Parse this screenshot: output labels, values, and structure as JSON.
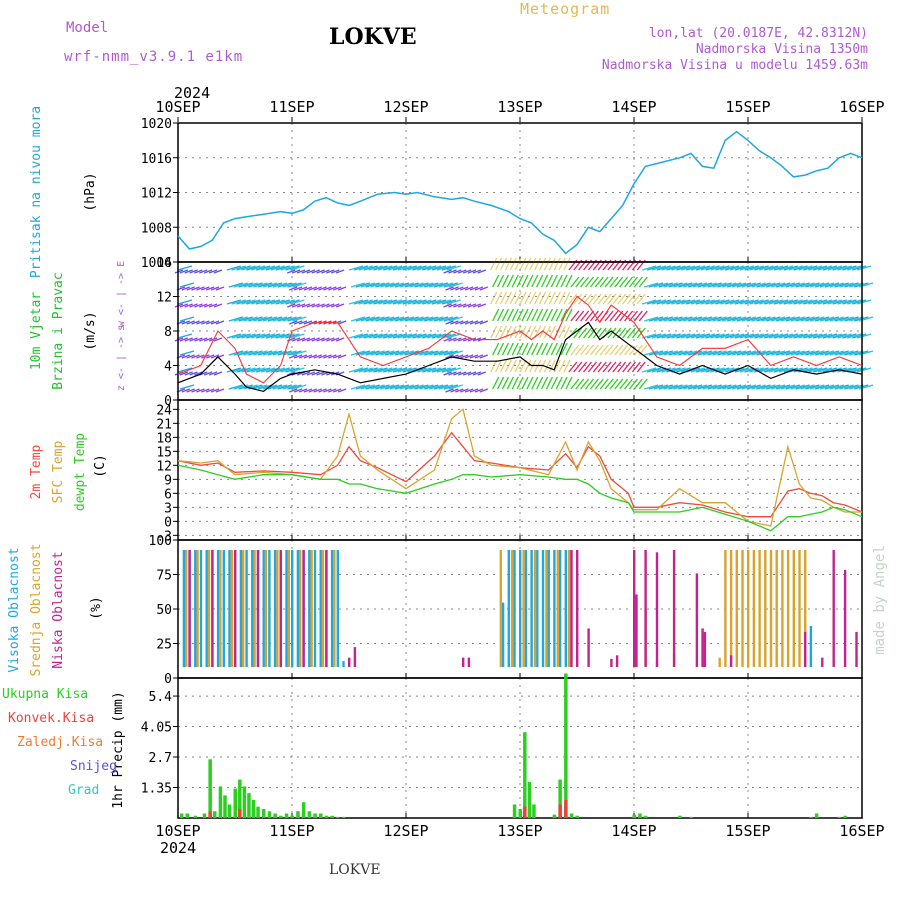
{
  "header": {
    "model_label": "Model",
    "model_name": "wrf-nmm_v3.9.1 e1km",
    "title": "LOKVE",
    "meteogram_label": "Meteogram",
    "lonlat": "lon,lat (20.0187E, 42.8312N)",
    "elevation": "Nadmorska Visina 1350m",
    "model_elevation": "Nadmorska Visina u modelu 1459.63m",
    "year": "2024",
    "footer": "LOKVE",
    "credit": "made by Angel"
  },
  "colors": {
    "pressure": "#1ea7e1",
    "wind_label": "#22c22e",
    "wind_speed": "#000000",
    "gust": "#ff3030",
    "t2m": "#ef4a3c",
    "sfc": "#d9a32e",
    "dewpt": "#2ccf20",
    "high_cloud": "#1ea7e1",
    "mid_cloud": "#d9a32e",
    "low_cloud": "#c2238c",
    "rain": "#2ccf20",
    "convective": "#e8453a",
    "snow": "#5a50e0",
    "graupel": "#2ec8c8",
    "freezing": "#f07a30"
  },
  "chart_data": [
    {
      "type": "line",
      "panel": "pressure",
      "ylabel": "Pritisak na nivou mora",
      "unit": "(hPa)",
      "x_ticks": [
        "10SEP",
        "11SEP",
        "12SEP",
        "13SEP",
        "14SEP",
        "15SEP",
        "16SEP"
      ],
      "ylim": [
        1004,
        1020
      ],
      "y_ticks": [
        "1004",
        "1008",
        "1012",
        "1016",
        "1020"
      ],
      "x": [
        0,
        0.1,
        0.2,
        0.3,
        0.4,
        0.5,
        0.6,
        0.75,
        0.9,
        1.0,
        1.1,
        1.2,
        1.3,
        1.4,
        1.5,
        1.6,
        1.75,
        1.9,
        2.0,
        2.1,
        2.25,
        2.4,
        2.5,
        2.6,
        2.75,
        2.9,
        3.0,
        3.1,
        3.2,
        3.3,
        3.4,
        3.5,
        3.6,
        3.7,
        3.8,
        3.9,
        4.0,
        4.1,
        4.25,
        4.4,
        4.5,
        4.6,
        4.7,
        4.8,
        4.9,
        5.0,
        5.1,
        5.2,
        5.3,
        5.4,
        5.5,
        5.6,
        5.7,
        5.8,
        5.9,
        6.0
      ],
      "values": [
        1007,
        1005.5,
        1005.8,
        1006.5,
        1008.5,
        1009,
        1009.2,
        1009.5,
        1009.8,
        1009.6,
        1010,
        1011,
        1011.4,
        1010.8,
        1010.5,
        1011,
        1011.8,
        1012,
        1011.8,
        1012,
        1011.5,
        1011.2,
        1011.4,
        1011,
        1010.5,
        1009.8,
        1009,
        1008.5,
        1007.2,
        1006.5,
        1005,
        1006,
        1008,
        1007.5,
        1009,
        1010.5,
        1013,
        1015,
        1015.5,
        1016,
        1016.5,
        1015,
        1014.8,
        1018,
        1019,
        1018,
        1016.8,
        1016,
        1015,
        1013.8,
        1014,
        1014.5,
        1014.8,
        1016,
        1016.5,
        1016
      ]
    },
    {
      "type": "line",
      "panel": "wind",
      "ylabel": "10m Vjetar",
      "ylabel2": "Brzina i Pravac",
      "unit": "(m/s)",
      "compass": "w <- | -> E",
      "compass_ns": "z <- | -> s",
      "x_ticks": [
        "10SEP",
        "11SEP",
        "12SEP",
        "13SEP",
        "14SEP",
        "15SEP",
        "16SEP"
      ],
      "ylim": [
        0,
        16
      ],
      "y_ticks": [
        "0",
        "4",
        "8",
        "12",
        "16"
      ],
      "x": [
        0,
        0.2,
        0.35,
        0.5,
        0.6,
        0.75,
        0.9,
        1.0,
        1.2,
        1.4,
        1.6,
        1.8,
        2.0,
        2.2,
        2.4,
        2.6,
        2.8,
        3.0,
        3.1,
        3.2,
        3.3,
        3.4,
        3.5,
        3.6,
        3.7,
        3.8,
        4.0,
        4.2,
        4.4,
        4.6,
        4.8,
        5.0,
        5.2,
        5.4,
        5.6,
        5.8,
        6.0
      ],
      "series": [
        {
          "name": "speed",
          "values": [
            2,
            3,
            5,
            3,
            1.5,
            1,
            2.5,
            3,
            3.5,
            3,
            2,
            2.5,
            3,
            4,
            5,
            4.5,
            4.5,
            5,
            4,
            4,
            3.5,
            7,
            8,
            9,
            7,
            8,
            6,
            4,
            3,
            4,
            3,
            4,
            2.5,
            3.5,
            3,
            3.5,
            3
          ]
        },
        {
          "name": "gust",
          "values": [
            3,
            4,
            8,
            6,
            3,
            2,
            4,
            8,
            9,
            9,
            5,
            4,
            5,
            6,
            8,
            7,
            7,
            8,
            7,
            8,
            7,
            10,
            12,
            11,
            9,
            11,
            9,
            5,
            4,
            6,
            6,
            7,
            4,
            5,
            4,
            5,
            4
          ]
        }
      ]
    },
    {
      "type": "line",
      "panel": "temperature",
      "ylabel": "2m Temp",
      "ylabel2": "SFC Temp",
      "ylabel3": "dewpt Temp",
      "unit": "(C)",
      "x_ticks": [
        "10SEP",
        "11SEP",
        "12SEP",
        "13SEP",
        "14SEP",
        "15SEP",
        "16SEP"
      ],
      "ylim": [
        -4,
        26
      ],
      "y_ticks": [
        "-3",
        "0",
        "3",
        "6",
        "9",
        "12",
        "15",
        "18",
        "21",
        "24"
      ],
      "x": [
        0,
        0.2,
        0.35,
        0.5,
        0.75,
        1.0,
        1.25,
        1.4,
        1.5,
        1.6,
        1.75,
        2.0,
        2.25,
        2.4,
        2.5,
        2.6,
        2.75,
        3.0,
        3.25,
        3.4,
        3.5,
        3.6,
        3.7,
        3.8,
        3.95,
        4.0,
        4.2,
        4.4,
        4.6,
        4.8,
        5.0,
        5.2,
        5.35,
        5.45,
        5.55,
        5.65,
        5.75,
        5.85,
        6.0
      ],
      "series": [
        {
          "name": "2m Temp",
          "values": [
            13,
            12,
            12.5,
            10.5,
            10.8,
            10.5,
            10,
            12,
            16,
            13,
            11.5,
            8.5,
            14,
            19,
            16,
            13,
            12.5,
            11.5,
            11,
            14.5,
            11.5,
            16,
            14,
            9,
            6,
            3,
            3,
            4,
            3.5,
            2,
            1,
            1,
            6.5,
            7,
            6,
            5.5,
            4,
            3.5,
            2
          ]
        },
        {
          "name": "SFC Temp",
          "values": [
            13,
            12.5,
            13,
            10,
            10.5,
            10,
            9,
            14,
            23,
            14,
            11,
            7,
            11,
            22,
            24,
            14,
            12,
            11.5,
            10,
            17,
            11,
            17,
            13,
            7,
            4,
            2.5,
            2.5,
            7,
            4,
            4,
            0,
            -1,
            16,
            8,
            5,
            4.5,
            3,
            2,
            2
          ]
        },
        {
          "name": "dewpt Temp",
          "values": [
            12,
            11,
            10,
            9,
            10,
            10,
            9,
            9,
            8,
            8,
            7,
            6,
            8,
            9,
            10,
            10,
            9.5,
            10,
            9.5,
            9,
            9,
            8,
            6,
            5,
            4,
            2,
            2,
            2,
            3,
            1.5,
            0,
            -2,
            1,
            1,
            1.5,
            2,
            3,
            2.5,
            1
          ]
        }
      ]
    },
    {
      "type": "bar",
      "panel": "cloud",
      "ylabel": "Visoka Oblacnost",
      "ylabel2": "Srednja Oblacnost",
      "ylabel3": "Niska Oblacnost",
      "unit": "(%)",
      "x_ticks": [
        "10SEP",
        "11SEP",
        "12SEP",
        "13SEP",
        "14SEP",
        "15SEP",
        "16SEP"
      ],
      "ylim": [
        0,
        100
      ],
      "y_ticks": [
        "0",
        "25",
        "50",
        "75",
        "100"
      ],
      "series": [
        {
          "name": "Visoka Oblacnost",
          "x": [
            0.05,
            0.1,
            0.15,
            0.2,
            0.25,
            0.3,
            0.35,
            0.4,
            0.45,
            0.5,
            0.55,
            0.6,
            0.65,
            0.7,
            0.75,
            0.8,
            0.85,
            0.9,
            0.95,
            1.0,
            1.05,
            1.1,
            1.15,
            1.2,
            1.25,
            1.3,
            1.35,
            1.4,
            1.45,
            2.85,
            2.9,
            2.95,
            3.0,
            3.05,
            3.1,
            3.15,
            3.2,
            3.25,
            3.3,
            3.35,
            3.4,
            5.55
          ],
          "values": [
            100,
            100,
            100,
            100,
            100,
            100,
            100,
            100,
            100,
            100,
            100,
            100,
            100,
            100,
            100,
            100,
            100,
            100,
            100,
            100,
            100,
            100,
            100,
            100,
            100,
            100,
            100,
            100,
            5,
            55,
            100,
            100,
            100,
            100,
            100,
            100,
            100,
            100,
            100,
            100,
            100,
            35
          ]
        },
        {
          "name": "Srednja Oblacnost",
          "x": [
            0.07,
            0.17,
            0.27,
            0.37,
            0.47,
            0.57,
            0.67,
            0.77,
            0.87,
            0.97,
            1.07,
            1.17,
            1.27,
            1.37,
            2.83,
            2.93,
            3.03,
            3.13,
            3.23,
            3.33,
            3.43,
            4.0,
            4.1,
            4.2,
            4.35,
            4.6,
            4.75,
            4.8,
            4.85,
            4.9,
            4.95,
            5.0,
            5.05,
            5.1,
            5.15,
            5.2,
            5.25,
            5.3,
            5.35,
            5.4,
            5.45,
            5.5
          ],
          "values": [
            100,
            100,
            100,
            100,
            100,
            100,
            100,
            100,
            100,
            100,
            100,
            100,
            100,
            100,
            100,
            100,
            100,
            100,
            100,
            100,
            100,
            25,
            50,
            5,
            12,
            28,
            8,
            100,
            100,
            100,
            100,
            100,
            100,
            100,
            100,
            100,
            100,
            100,
            100,
            100,
            100,
            100
          ]
        },
        {
          "name": "Niska Oblacnost",
          "x": [
            0.1,
            0.3,
            0.5,
            0.7,
            0.9,
            1.1,
            1.3,
            1.5,
            1.55,
            2.5,
            2.55,
            3.45,
            3.5,
            3.6,
            3.8,
            3.85,
            4.0,
            4.02,
            4.1,
            4.2,
            4.35,
            4.55,
            4.6,
            4.62,
            4.85,
            5.5,
            5.65,
            5.75,
            5.85,
            5.95
          ],
          "values": [
            100,
            100,
            100,
            100,
            100,
            100,
            100,
            8,
            17,
            8,
            8,
            100,
            100,
            33,
            7,
            10,
            100,
            62,
            100,
            98,
            100,
            80,
            33,
            30,
            10,
            30,
            8,
            100,
            83,
            30
          ]
        }
      ]
    },
    {
      "type": "bar",
      "panel": "precipitation",
      "ylabel": "1hr Precip",
      "unit": "(mm)",
      "legend": [
        "Ukupna Kisa",
        "Konvek.Kisa",
        "Zaledj.Kisa",
        "Snijeg",
        "Grad"
      ],
      "x_ticks": [
        "10SEP",
        "11SEP",
        "12SEP",
        "13SEP",
        "14SEP",
        "15SEP",
        "16SEP"
      ],
      "year": "2024",
      "ylim": [
        0,
        6.2
      ],
      "y_ticks": [
        "1.35",
        "2.7",
        "4.05",
        "5.4"
      ],
      "series": [
        {
          "name": "Ukupna Kisa",
          "x": [
            0.03,
            0.08,
            0.15,
            0.23,
            0.28,
            0.32,
            0.37,
            0.41,
            0.45,
            0.5,
            0.54,
            0.58,
            0.62,
            0.66,
            0.7,
            0.75,
            0.8,
            0.85,
            0.9,
            0.95,
            1.0,
            1.05,
            1.1,
            1.15,
            1.2,
            1.25,
            1.3,
            1.35,
            1.4,
            1.45,
            2.95,
            3.0,
            3.04,
            3.08,
            3.12,
            3.3,
            3.35,
            3.4,
            3.45,
            3.5,
            4.0,
            4.05,
            4.1,
            4.4,
            4.5,
            5.55,
            5.6,
            5.8,
            5.85
          ],
          "values": [
            0.2,
            0.2,
            0.1,
            0.2,
            2.6,
            0.3,
            1.4,
            1,
            0.6,
            1.3,
            1.7,
            1.4,
            1.1,
            0.8,
            0.5,
            0.4,
            0.3,
            0.2,
            0.1,
            0.2,
            0.1,
            0.3,
            0.7,
            0.3,
            0.2,
            0.2,
            0.1,
            0.1,
            0.05,
            0.05,
            0.6,
            0.4,
            3.8,
            1.6,
            0.6,
            0.15,
            1.7,
            6.4,
            0.2,
            0.1,
            0.15,
            0.2,
            0.1,
            0.1,
            0.05,
            0.05,
            0.2,
            0.05,
            0.1
          ]
        },
        {
          "name": "Konvek.Kisa",
          "x": [
            0.28,
            0.54,
            3.04,
            3.35,
            3.4
          ],
          "values": [
            0.3,
            0.4,
            0.5,
            0.6,
            0.8
          ]
        }
      ]
    }
  ]
}
